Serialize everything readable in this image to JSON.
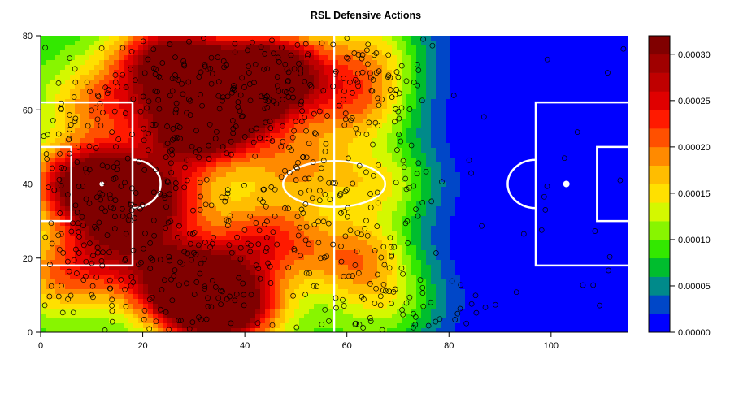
{
  "chart_data": {
    "type": "heatmap",
    "title": "RSL Defensive Actions",
    "xlabel": "",
    "ylabel": "",
    "xlim": [
      0,
      115
    ],
    "ylim": [
      0,
      80
    ],
    "x_ticks": [
      "0",
      "20",
      "40",
      "60",
      "80",
      "100"
    ],
    "y_ticks": [
      "0",
      "20",
      "40",
      "60",
      "80"
    ],
    "legend": {
      "position": "right",
      "min": 0,
      "max": 0.00032,
      "tick_labels": [
        "0.00000",
        "0.00005",
        "0.00010",
        "0.00015",
        "0.00020",
        "0.00025",
        "0.00030"
      ],
      "colors": [
        "#0000ff",
        "#0047c8",
        "#008a8a",
        "#00bd2e",
        "#33e800",
        "#88f500",
        "#d4f800",
        "#ffe000",
        "#ffbd00",
        "#ff8a00",
        "#ff5000",
        "#ff1a00",
        "#e00000",
        "#bf0000",
        "#a00000",
        "#800000"
      ]
    },
    "density_peaks": [
      {
        "x": 35,
        "y": 7,
        "weight": 1.0
      },
      {
        "x": 28,
        "y": 14,
        "weight": 0.75
      },
      {
        "x": 10,
        "y": 40,
        "weight": 0.9
      },
      {
        "x": 22,
        "y": 36,
        "weight": 0.6
      },
      {
        "x": 30,
        "y": 55,
        "weight": 0.8
      },
      {
        "x": 26,
        "y": 73,
        "weight": 0.85
      },
      {
        "x": 45,
        "y": 70,
        "weight": 0.9
      },
      {
        "x": 38,
        "y": 62,
        "weight": 0.6
      },
      {
        "x": 15,
        "y": 25,
        "weight": 0.45
      },
      {
        "x": 44,
        "y": 25,
        "weight": 0.45
      },
      {
        "x": 12,
        "y": 62,
        "weight": 0.35
      },
      {
        "x": 5,
        "y": 15,
        "weight": 0.35
      },
      {
        "x": 50,
        "y": 45,
        "weight": 0.3
      },
      {
        "x": 62,
        "y": 20,
        "weight": 0.35
      },
      {
        "x": 62,
        "y": 62,
        "weight": 0.35
      },
      {
        "x": 68,
        "y": 40,
        "weight": 0.25
      },
      {
        "x": 70,
        "y": 8,
        "weight": 0.2
      },
      {
        "x": 65,
        "y": 75,
        "weight": 0.25
      }
    ],
    "pitch": {
      "halfway_x": 57.5,
      "center": [
        57.5,
        40
      ],
      "center_circle_radius": 10,
      "left_penalty_spot": [
        12,
        40
      ],
      "right_penalty_spot": [
        103,
        40
      ],
      "penalty_area_x": 18,
      "penalty_area_y": [
        18,
        62
      ],
      "goal_area_x": 6,
      "goal_area_y": [
        30,
        50
      ]
    },
    "point_count": 900
  }
}
